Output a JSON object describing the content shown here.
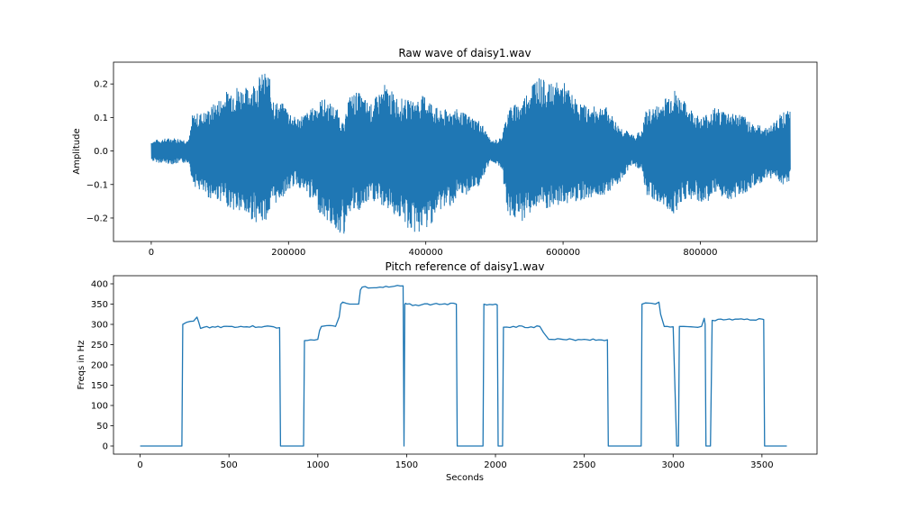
{
  "figure": {
    "background": "#ffffff"
  },
  "chart_data": [
    {
      "type": "line",
      "title": "Raw wave of daisy1.wav",
      "xlabel": "",
      "ylabel": "Amplitude",
      "xlim": [
        -55000,
        970000
      ],
      "ylim": [
        -0.27,
        0.265
      ],
      "xticks": [
        0,
        200000,
        400000,
        600000,
        800000
      ],
      "xtick_labels": [
        "0",
        "200000",
        "400000",
        "600000",
        "800000"
      ],
      "yticks": [
        -0.2,
        -0.1,
        0.0,
        0.1,
        0.2
      ],
      "ytick_labels": [
        "−0.2",
        "−0.1",
        "0.0",
        "0.1",
        "0.2"
      ],
      "grid": false,
      "color": "#1f77b4",
      "series": [
        {
          "kind": "amplitude_envelope",
          "x": [
            0,
            10000,
            30000,
            55000,
            60000,
            80000,
            100000,
            120000,
            140000,
            160000,
            170000,
            180000,
            195000,
            210000,
            230000,
            250000,
            270000,
            282000,
            285000,
            300000,
            320000,
            340000,
            360000,
            380000,
            400000,
            420000,
            440000,
            460000,
            480000,
            490000,
            495000,
            510000,
            520000,
            540000,
            560000,
            580000,
            600000,
            620000,
            640000,
            660000,
            680000,
            700000,
            715000,
            720000,
            740000,
            760000,
            780000,
            800000,
            820000,
            840000,
            860000,
            880000,
            900000,
            920000,
            930000
          ],
          "upper": [
            0.03,
            0.035,
            0.04,
            0.035,
            0.11,
            0.12,
            0.16,
            0.2,
            0.19,
            0.23,
            0.24,
            0.15,
            0.14,
            0.1,
            0.12,
            0.16,
            0.13,
            0.07,
            0.16,
            0.18,
            0.14,
            0.2,
            0.16,
            0.15,
            0.17,
            0.12,
            0.13,
            0.11,
            0.09,
            0.05,
            0.03,
            0.04,
            0.13,
            0.15,
            0.23,
            0.2,
            0.21,
            0.15,
            0.13,
            0.14,
            0.08,
            0.05,
            0.06,
            0.12,
            0.14,
            0.19,
            0.14,
            0.1,
            0.13,
            0.12,
            0.11,
            0.08,
            0.07,
            0.12,
            0.12
          ],
          "lower": [
            -0.03,
            -0.035,
            -0.04,
            -0.035,
            -0.1,
            -0.14,
            -0.15,
            -0.18,
            -0.2,
            -0.22,
            -0.2,
            -0.16,
            -0.13,
            -0.1,
            -0.14,
            -0.2,
            -0.24,
            -0.26,
            -0.18,
            -0.19,
            -0.15,
            -0.17,
            -0.2,
            -0.25,
            -0.24,
            -0.18,
            -0.16,
            -0.13,
            -0.1,
            -0.05,
            -0.03,
            -0.05,
            -0.2,
            -0.21,
            -0.17,
            -0.18,
            -0.16,
            -0.15,
            -0.14,
            -0.13,
            -0.1,
            -0.04,
            -0.06,
            -0.13,
            -0.16,
            -0.19,
            -0.14,
            -0.16,
            -0.14,
            -0.15,
            -0.13,
            -0.11,
            -0.08,
            -0.1,
            -0.1
          ]
        }
      ]
    },
    {
      "type": "line",
      "title": "Pitch reference of daisy1.wav",
      "xlabel": "Seconds",
      "ylabel": "Freqs in Hz",
      "xlim": [
        -150,
        3810
      ],
      "ylim": [
        -20,
        420
      ],
      "xticks": [
        0,
        500,
        1000,
        1500,
        2000,
        2500,
        3000,
        3500
      ],
      "xtick_labels": [
        "0",
        "500",
        "1000",
        "1500",
        "2000",
        "2500",
        "3000",
        "3500"
      ],
      "yticks": [
        0,
        50,
        100,
        150,
        200,
        250,
        300,
        350,
        400
      ],
      "ytick_labels": [
        "0",
        "50",
        "100",
        "150",
        "200",
        "250",
        "300",
        "350",
        "400"
      ],
      "grid": false,
      "color": "#1f77b4",
      "series": [
        {
          "x": [
            0,
            235,
            240,
            260,
            300,
            320,
            330,
            340,
            360,
            500,
            600,
            700,
            785,
            790,
            920,
            925,
            960,
            1000,
            1010,
            1020,
            1050,
            1100,
            1120,
            1130,
            1140,
            1160,
            1200,
            1230,
            1240,
            1250,
            1300,
            1400,
            1480,
            1485,
            1490,
            1495,
            1500,
            1550,
            1650,
            1780,
            1785,
            1930,
            1935,
            2000,
            2010,
            2015,
            2040,
            2045,
            2100,
            2200,
            2250,
            2270,
            2300,
            2400,
            2500,
            2630,
            2635,
            2820,
            2825,
            2880,
            2900,
            2920,
            2930,
            2950,
            3000,
            3020,
            3030,
            3035,
            3060,
            3100,
            3160,
            3175,
            3180,
            3185,
            3210,
            3220,
            3300,
            3400,
            3500,
            3510,
            3515,
            3640
          ],
          "y": [
            0,
            0,
            300,
            305,
            308,
            318,
            305,
            290,
            293,
            295,
            294,
            295,
            292,
            0,
            0,
            260,
            262,
            263,
            285,
            295,
            297,
            295,
            318,
            350,
            355,
            352,
            350,
            350,
            385,
            392,
            390,
            392,
            395,
            0,
            350,
            352,
            350,
            348,
            350,
            350,
            0,
            0,
            350,
            350,
            348,
            0,
            0,
            293,
            295,
            294,
            295,
            280,
            263,
            262,
            263,
            262,
            0,
            0,
            350,
            352,
            350,
            355,
            325,
            295,
            294,
            0,
            0,
            295,
            295,
            294,
            295,
            315,
            300,
            0,
            0,
            310,
            312,
            312,
            313,
            312,
            0,
            0
          ]
        }
      ]
    }
  ]
}
